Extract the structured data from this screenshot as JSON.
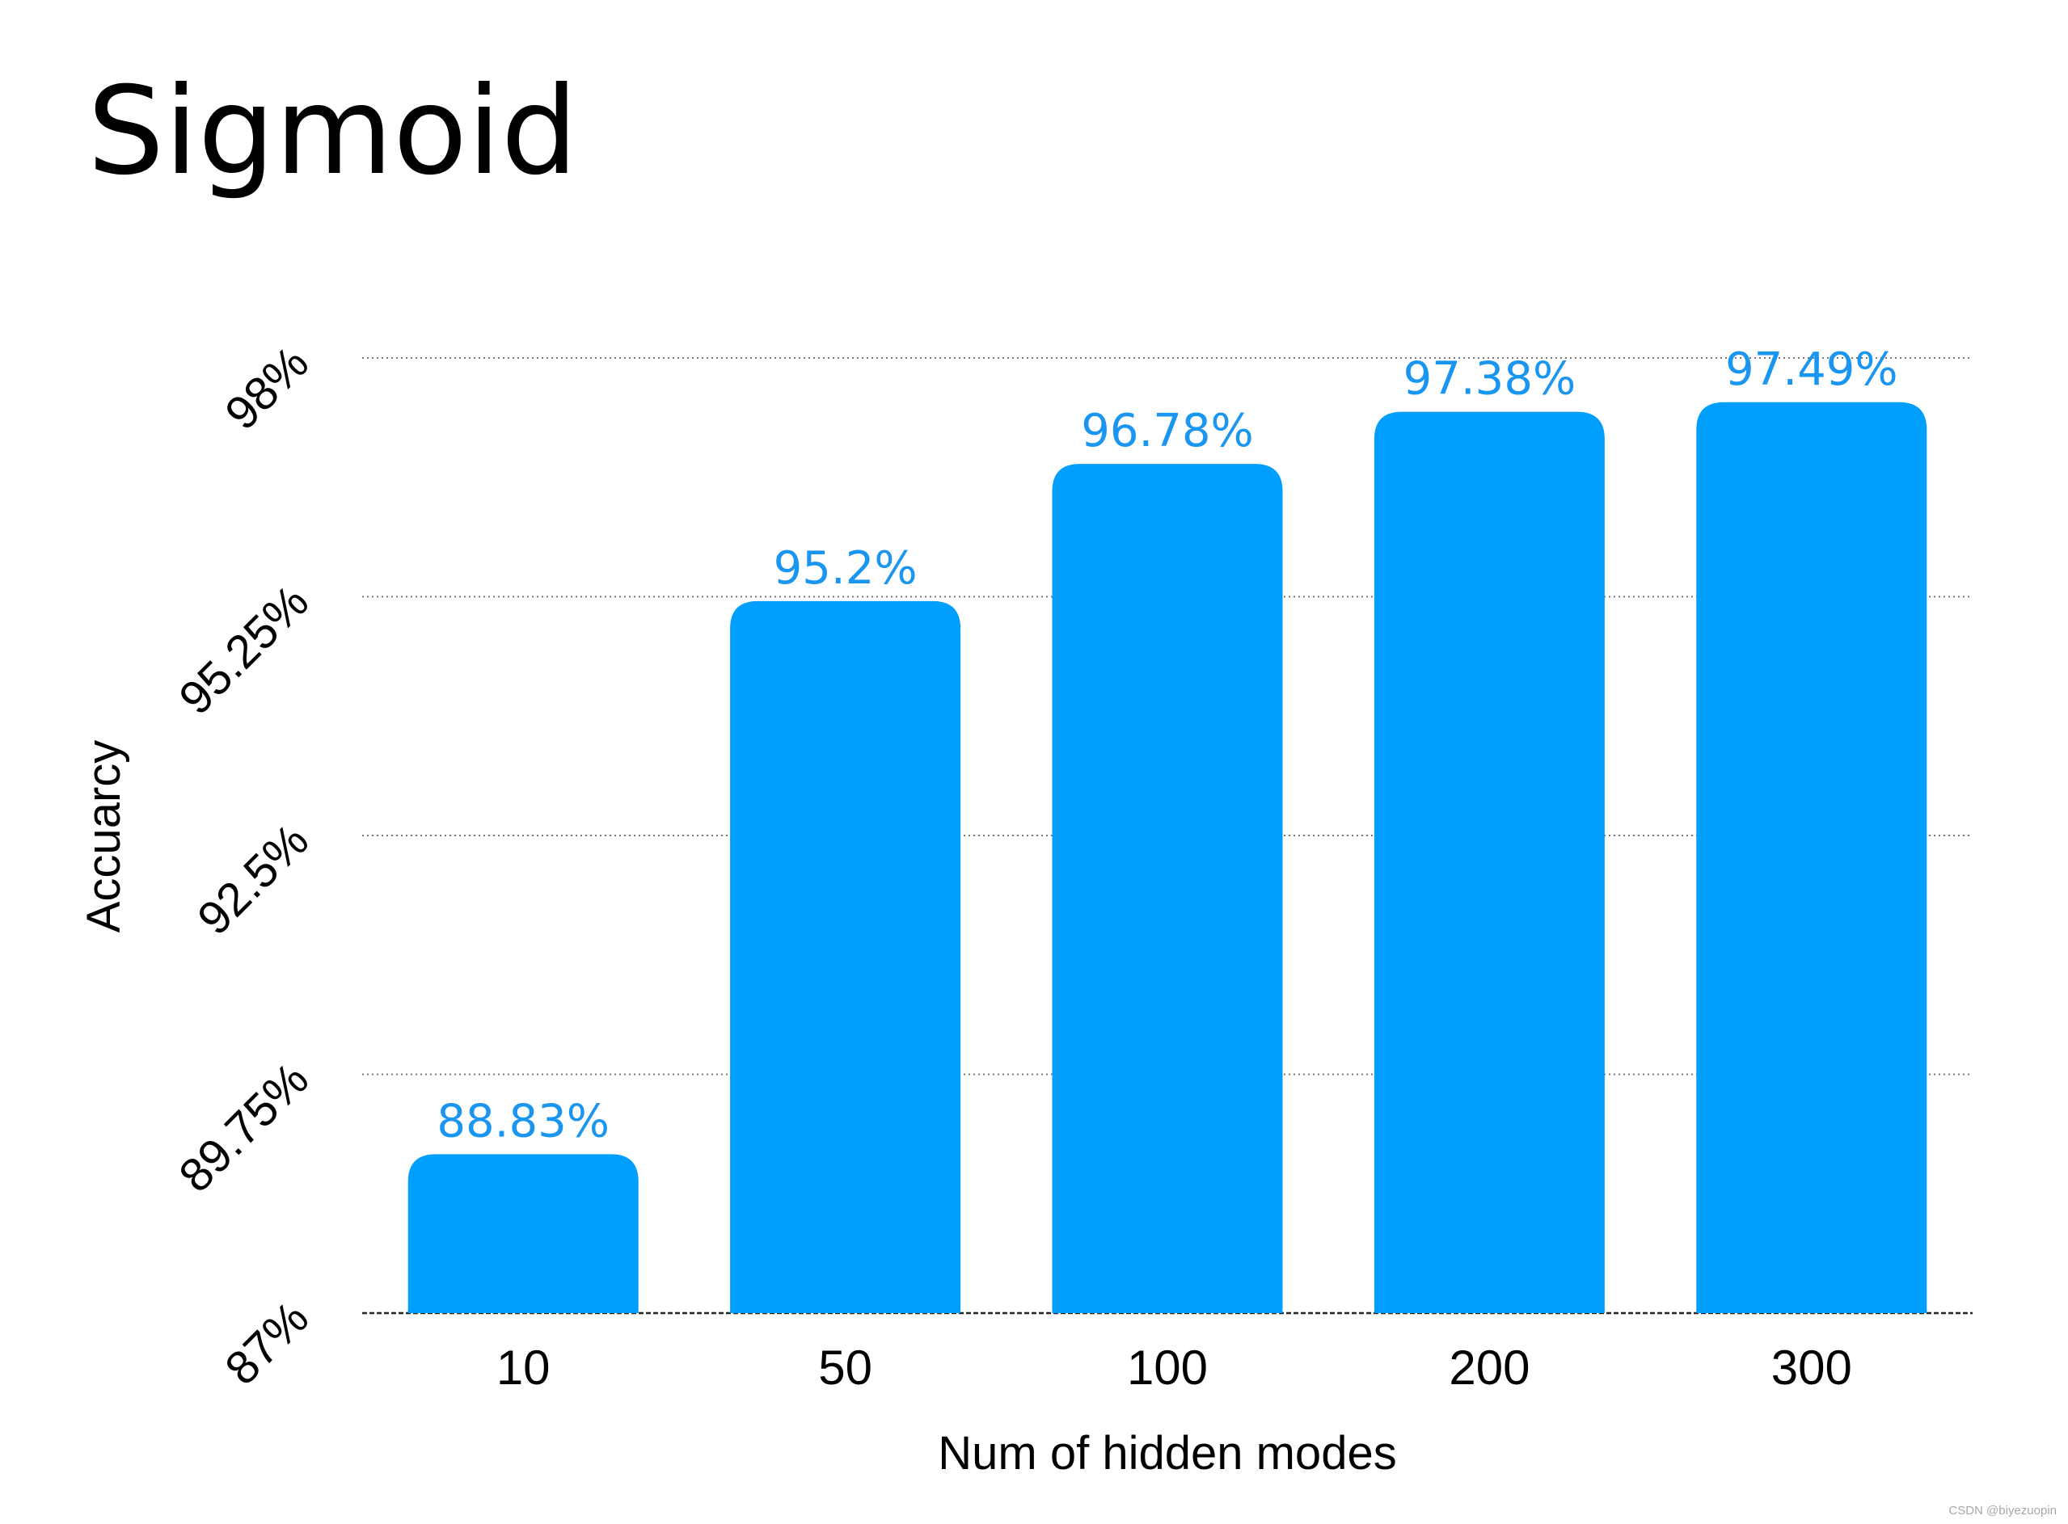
{
  "chart_data": {
    "type": "bar",
    "title": "Sigmoid",
    "xlabel": "Num of hidden modes",
    "ylabel": "Accuarcy",
    "categories": [
      "10",
      "50",
      "100",
      "200",
      "300"
    ],
    "values": [
      88.83,
      95.2,
      96.78,
      97.38,
      97.49
    ],
    "data_labels": [
      "88.83%",
      "95.2%",
      "96.78%",
      "97.38%",
      "97.49%"
    ],
    "ylim": [
      87,
      98
    ],
    "yticks": [
      87,
      89.75,
      92.5,
      95.25,
      98
    ],
    "ytick_labels": [
      "87%",
      "89.75%",
      "92.5%",
      "95.25%",
      "98%"
    ],
    "grid": true,
    "bar_color": "#009ffd",
    "label_color": "#1a96f0"
  },
  "watermark": "CSDN @biyezuopin"
}
